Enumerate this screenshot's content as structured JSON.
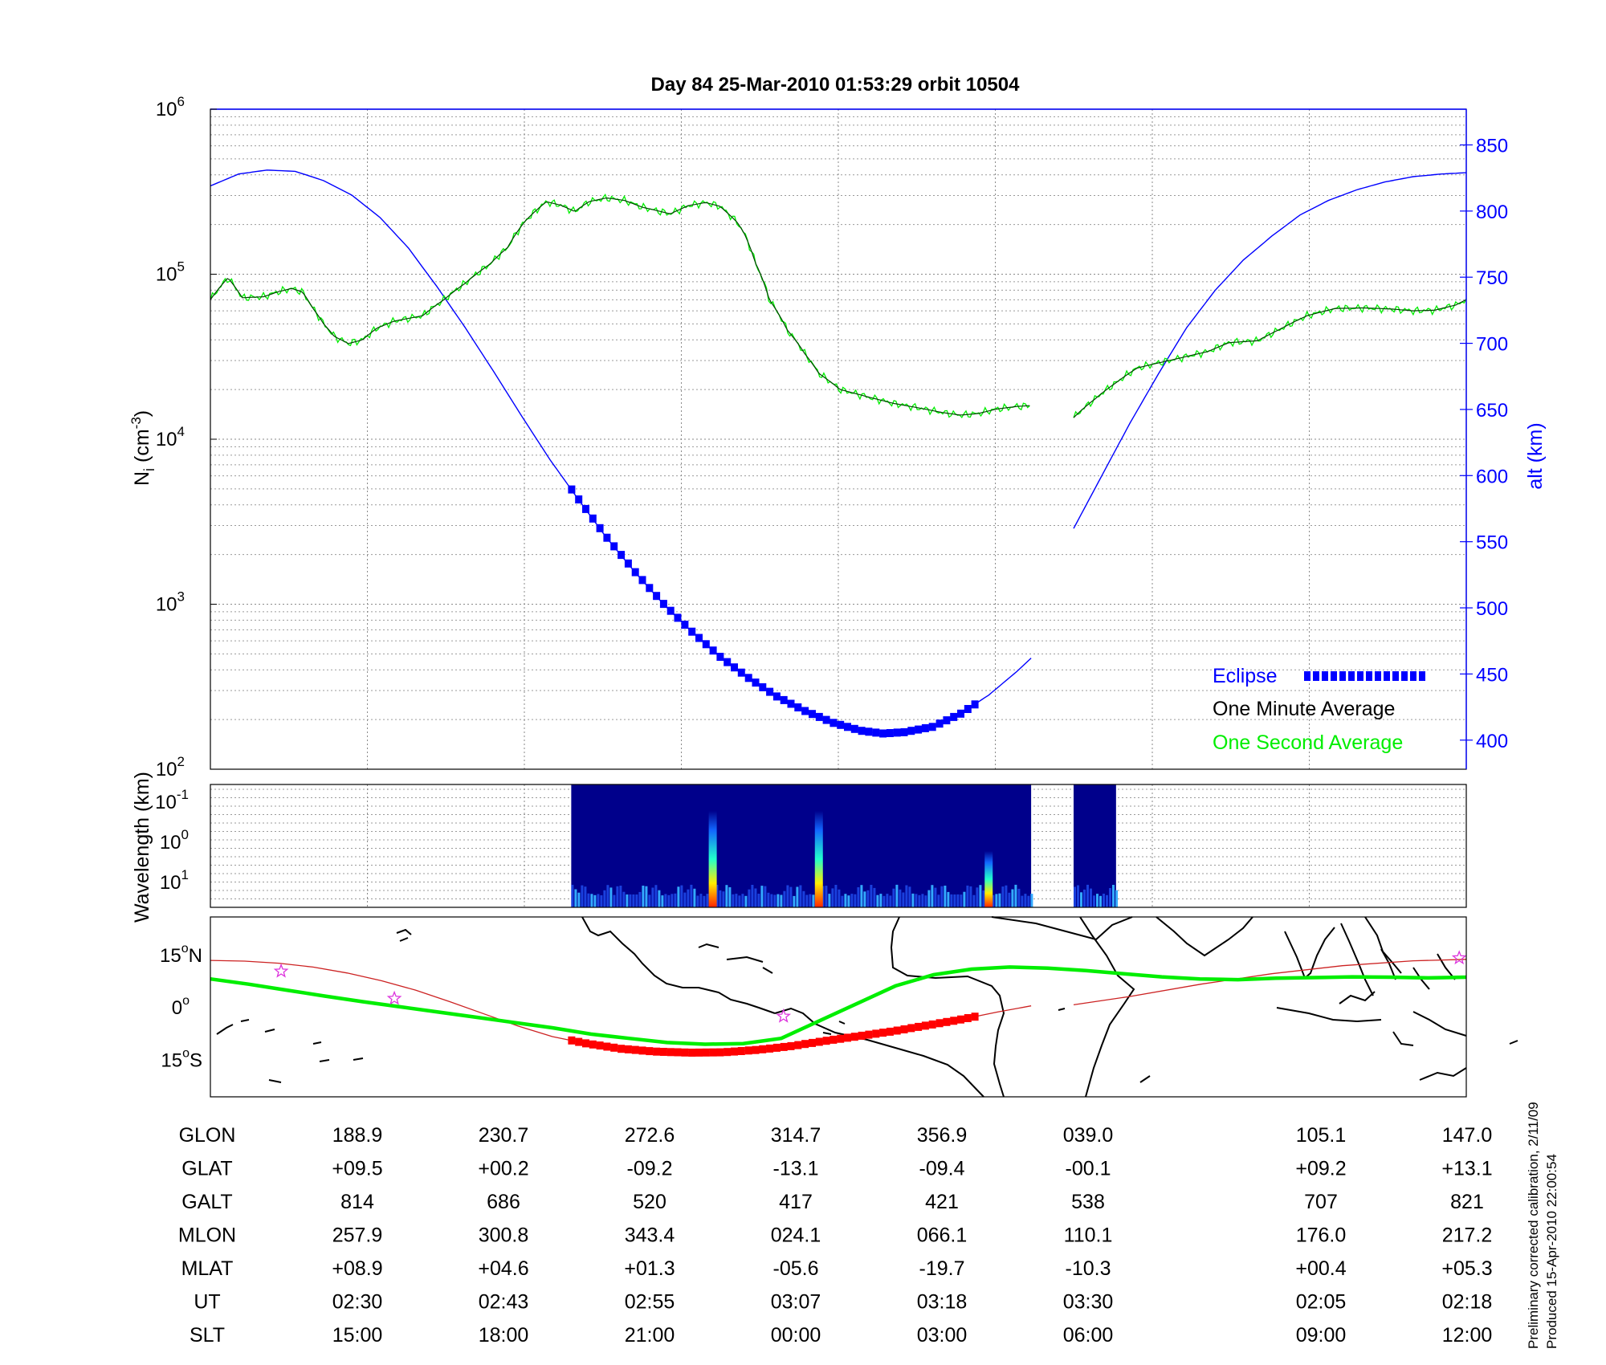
{
  "title": "Day 84  25-Mar-2010 01:53:29   orbit 10504",
  "colors": {
    "blue": "#0000ff",
    "green": "#00ee00",
    "dark_green": "#004400",
    "red": "#ff0000",
    "track_red": "#cc2222",
    "magenta": "#dd33dd",
    "spectrogram_bg": "#00008b"
  },
  "chart_data": [
    {
      "type": "line",
      "panel": "density",
      "title": "Day 84  25-Mar-2010 01:53:29   orbit 10504",
      "ylabel": "N_i (cm^-3)",
      "ylabel_main": "N",
      "ylabel_sub": "i",
      "ylabel_rest": " (cm",
      "ylabel_sup": "-3",
      "ylabel_end": ")",
      "y_scale": "log",
      "ylim": [
        100,
        1000000
      ],
      "y_ticks": [
        {
          "value": 100,
          "base": "10",
          "exp": "2"
        },
        {
          "value": 1000,
          "base": "10",
          "exp": "3"
        },
        {
          "value": 10000,
          "base": "10",
          "exp": "4"
        },
        {
          "value": 100000,
          "base": "10",
          "exp": "5"
        },
        {
          "value": 1000000,
          "base": "10",
          "exp": "6"
        }
      ],
      "y2label": "alt (km)",
      "y2lim": [
        378,
        877
      ],
      "y2_ticks": [
        "400",
        "450",
        "500",
        "550",
        "600",
        "650",
        "700",
        "750",
        "800",
        "850"
      ],
      "grid": true,
      "legend": {
        "placement": "lower-right",
        "eclipse": "Eclipse",
        "minute": "One Minute Average",
        "second": "One Second Average"
      },
      "x_ticks": [
        0,
        1,
        2,
        3,
        4,
        5,
        6,
        7,
        8
      ],
      "x_tick_note": "columns correspond to the table labels below",
      "series_density": [
        {
          "name": "One Minute Average",
          "segments": [
            [
              [
                0,
                70000
              ],
              [
                0.25,
                95000
              ],
              [
                0.45,
                72000
              ],
              [
                0.75,
                73000
              ],
              [
                0.95,
                78000
              ],
              [
                1.15,
                82000
              ],
              [
                1.3,
                78000
              ],
              [
                1.45,
                62000
              ],
              [
                1.6,
                50000
              ],
              [
                1.75,
                42000
              ],
              [
                1.95,
                38000
              ],
              [
                2.15,
                40000
              ],
              [
                2.35,
                47000
              ],
              [
                2.6,
                52000
              ],
              [
                3.0,
                56000
              ],
              [
                3.3,
                70000
              ],
              [
                3.6,
                88000
              ],
              [
                3.95,
                115000
              ],
              [
                4.2,
                145000
              ],
              [
                4.45,
                210000
              ],
              [
                4.75,
                275000
              ],
              [
                4.95,
                262000
              ],
              [
                5.15,
                240000
              ],
              [
                5.35,
                275000
              ],
              [
                5.6,
                290000
              ],
              [
                5.85,
                280000
              ],
              [
                6.1,
                255000
              ],
              [
                6.5,
                232000
              ],
              [
                6.75,
                260000
              ],
              [
                7.0,
                272000
              ],
              [
                7.2,
                258000
              ],
              [
                7.45,
                205000
              ],
              [
                7.55,
                175000
              ],
              [
                7.7,
                118000
              ],
              [
                7.9,
                70000
              ],
              [
                8.15,
                46000
              ],
              [
                8.4,
                33000
              ],
              [
                8.6,
                25000
              ],
              [
                8.9,
                20000
              ],
              [
                9.3,
                18000
              ],
              [
                9.65,
                16500
              ],
              [
                10.0,
                15500
              ],
              [
                10.35,
                14500
              ],
              [
                10.6,
                14000
              ],
              [
                10.85,
                14300
              ],
              [
                11.1,
                15200
              ],
              [
                11.4,
                15800
              ],
              [
                11.6,
                16000
              ]
            ],
            [
              [
                12.2,
                13500
              ],
              [
                12.5,
                17500
              ],
              [
                12.8,
                22000
              ],
              [
                13.1,
                27000
              ],
              [
                13.4,
                29000
              ],
              [
                13.7,
                31000
              ],
              [
                14.1,
                34000
              ],
              [
                14.4,
                38500
              ],
              [
                14.8,
                39500
              ],
              [
                15.1,
                46000
              ],
              [
                15.5,
                56000
              ],
              [
                15.9,
                62000
              ],
              [
                16.3,
                62500
              ],
              [
                16.7,
                61500
              ],
              [
                17.0,
                60000
              ],
              [
                17.3,
                60500
              ],
              [
                17.6,
                65000
              ],
              [
                17.75,
                70000
              ]
            ]
          ]
        }
      ],
      "series_altitude": [
        {
          "name": "alt (km)",
          "segments": [
            [
              [
                0,
                819
              ],
              [
                0.4,
                828
              ],
              [
                0.8,
                831
              ],
              [
                1.2,
                830
              ],
              [
                1.6,
                823
              ],
              [
                2.0,
                812
              ],
              [
                2.4,
                795
              ],
              [
                2.8,
                772
              ],
              [
                3.2,
                743
              ],
              [
                3.6,
                712
              ],
              [
                4.0,
                679
              ],
              [
                4.4,
                645
              ],
              [
                4.8,
                612
              ],
              [
                5.2,
                582
              ],
              [
                5.6,
                553
              ],
              [
                6.0,
                527
              ],
              [
                6.4,
                503
              ],
              [
                6.8,
                482
              ],
              [
                7.2,
                463
              ],
              [
                7.6,
                447
              ],
              [
                8.0,
                433
              ],
              [
                8.4,
                422
              ],
              [
                8.8,
                413
              ],
              [
                9.2,
                407
              ],
              [
                9.5,
                405
              ],
              [
                9.8,
                406
              ],
              [
                10.2,
                410
              ],
              [
                10.6,
                420
              ],
              [
                11.0,
                434
              ],
              [
                11.4,
                452
              ],
              [
                11.6,
                462
              ]
            ],
            [
              [
                12.2,
                560
              ],
              [
                12.6,
                600
              ],
              [
                13.0,
                640
              ],
              [
                13.4,
                677
              ],
              [
                13.8,
                712
              ],
              [
                14.2,
                740
              ],
              [
                14.6,
                763
              ],
              [
                15.0,
                781
              ],
              [
                15.4,
                797
              ],
              [
                15.8,
                808
              ],
              [
                16.2,
                816
              ],
              [
                16.6,
                822
              ],
              [
                17.0,
                826
              ],
              [
                17.4,
                828
              ],
              [
                17.75,
                829
              ]
            ]
          ]
        }
      ],
      "eclipse_range": [
        5.1,
        10.8
      ]
    },
    {
      "type": "heatmap",
      "panel": "spectrogram",
      "ylabel": "Wavelength (km)",
      "y_ticks": [
        {
          "base": "10",
          "exp": "-1"
        },
        {
          "base": "10",
          "exp": "0"
        },
        {
          "base": "10",
          "exp": "1"
        }
      ],
      "data_blocks": [
        [
          5.1,
          11.6
        ],
        [
          12.2,
          12.8
        ]
      ],
      "bursts": [
        7.1,
        8.6,
        11.0
      ]
    },
    {
      "type": "line",
      "panel": "map",
      "ylim": [
        -15,
        15
      ],
      "y_ticks": [
        {
          "value": 15,
          "label": "15",
          "deg": "o",
          "hemi": "N"
        },
        {
          "value": 0,
          "label": "0",
          "deg": "o",
          "hemi": ""
        },
        {
          "value": -15,
          "label": "15",
          "deg": "o",
          "hemi": "S"
        }
      ],
      "series": [
        {
          "name": "magnetic equator",
          "values_lat": [
            8,
            6.5,
            4.8,
            3.1,
            1.5,
            0,
            -1.5,
            -3,
            -4.5,
            -6,
            -7.8,
            -9,
            -10.2,
            -10.7,
            -10.5,
            -9,
            -4,
            1,
            6,
            9.2,
            10.8,
            11.4,
            11.1,
            10.4,
            9.5,
            8.6,
            8,
            7.8,
            8.2,
            8.4,
            8.6,
            8.5,
            8.3,
            8.5
          ]
        },
        {
          "name": "satellite track",
          "values_lat": [
            13.3,
            13.1,
            12.5,
            11.4,
            9.7,
            7.5,
            4.8,
            1.5,
            -2,
            -5.5,
            -8.5,
            -10.5,
            -12,
            -12.8,
            -13.1,
            -13,
            -12.3,
            -11.2,
            -9.7,
            -8.3,
            -6.9,
            -5.2,
            -3.5,
            -1.5,
            0.3
          ]
        }
      ],
      "stars_lat": [
        10.2,
        2.4,
        -2.7,
        14
      ]
    }
  ],
  "table": {
    "row_labels": [
      "GLON",
      "GLAT",
      "GALT",
      "MLON",
      "MLAT",
      "UT",
      "SLT"
    ],
    "rows": [
      [
        "188.9",
        "230.7",
        "272.6",
        "314.7",
        "356.9",
        "039.0",
        "105.1",
        "147.0"
      ],
      [
        "+09.5",
        "+00.2",
        "-09.2",
        "-13.1",
        "-09.4",
        "-00.1",
        "+09.2",
        "+13.1"
      ],
      [
        "814",
        "686",
        "520",
        "417",
        "421",
        "538",
        "707",
        "821"
      ],
      [
        "257.9",
        "300.8",
        "343.4",
        "024.1",
        "066.1",
        "110.1",
        "176.0",
        "217.2"
      ],
      [
        "+08.9",
        "+04.6",
        "+01.3",
        "-05.6",
        "-19.7",
        "-10.3",
        "+00.4",
        "+05.3"
      ],
      [
        "02:30",
        "02:43",
        "02:55",
        "03:07",
        "03:18",
        "03:30",
        "02:05",
        "02:18"
      ],
      [
        "15:00",
        "18:00",
        "21:00",
        "00:00",
        "03:00",
        "06:00",
        "09:00",
        "12:00"
      ]
    ]
  },
  "footer": {
    "line1": "Preliminary corrected calibration, 2/11/09",
    "line2": "Produced 15-Apr-2010 22:00:54"
  }
}
